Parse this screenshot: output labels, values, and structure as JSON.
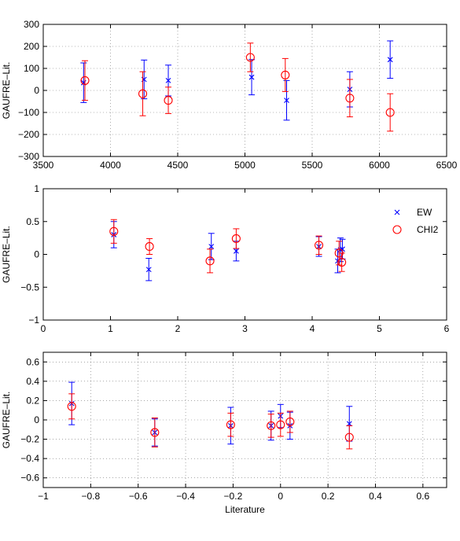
{
  "chart_data": [
    {
      "type": "scatter",
      "ylabel": "GAUFRE–Lit.",
      "xlabel": "",
      "xlim": [
        3500,
        6500
      ],
      "ylim": [
        -300,
        300
      ],
      "xticks": [
        "3500",
        "4000",
        "4500",
        "5000",
        "5500",
        "6000",
        "6500"
      ],
      "yticks": [
        "300",
        "200",
        "100",
        "0",
        "−100",
        "−200",
        "−300"
      ],
      "grid": true,
      "series": [
        {
          "name": "EW",
          "color": "#0000ff",
          "marker": "x",
          "points": [
            {
              "x": 3800,
              "y": 35,
              "err": 90
            },
            {
              "x": 4250,
              "y": 50,
              "err": 88
            },
            {
              "x": 4430,
              "y": 45,
              "err": 70
            },
            {
              "x": 5050,
              "y": 60,
              "err": 80
            },
            {
              "x": 5310,
              "y": -45,
              "err": 90
            },
            {
              "x": 5780,
              "y": 5,
              "err": 80
            },
            {
              "x": 6080,
              "y": 140,
              "err": 85
            }
          ]
        },
        {
          "name": "CHI2",
          "color": "#ff0000",
          "marker": "o",
          "points": [
            {
              "x": 3810,
              "y": 45,
              "err": 90
            },
            {
              "x": 4240,
              "y": -15,
              "err": 100
            },
            {
              "x": 4430,
              "y": -45,
              "err": 60
            },
            {
              "x": 5040,
              "y": 150,
              "err": 65
            },
            {
              "x": 5300,
              "y": 70,
              "err": 75
            },
            {
              "x": 5780,
              "y": -35,
              "err": 85
            },
            {
              "x": 6080,
              "y": -100,
              "err": 85
            }
          ]
        }
      ]
    },
    {
      "type": "scatter",
      "ylabel": "GAUFRE–Lit.",
      "xlabel": "",
      "xlim": [
        0,
        6
      ],
      "ylim": [
        -1,
        1
      ],
      "xticks": [
        "0",
        "1",
        "2",
        "3",
        "4",
        "5",
        "6"
      ],
      "yticks": [
        "1",
        "0.5",
        "0",
        "−0.5",
        "−1"
      ],
      "grid": false,
      "legend": {
        "position": "right",
        "entries": [
          "EW",
          "CHI2"
        ]
      },
      "series": [
        {
          "name": "EW",
          "color": "#0000ff",
          "marker": "x",
          "points": [
            {
              "x": 1.05,
              "y": 0.3,
              "err": 0.2
            },
            {
              "x": 1.57,
              "y": -0.23,
              "err": 0.17
            },
            {
              "x": 2.5,
              "y": 0.12,
              "err": 0.2
            },
            {
              "x": 2.87,
              "y": 0.05,
              "err": 0.15
            },
            {
              "x": 4.1,
              "y": 0.12,
              "err": 0.15
            },
            {
              "x": 4.38,
              "y": -0.1,
              "err": 0.18
            },
            {
              "x": 4.42,
              "y": 0.07,
              "err": 0.18
            },
            {
              "x": 4.45,
              "y": 0.08,
              "err": 0.15
            }
          ]
        },
        {
          "name": "CHI2",
          "color": "#ff0000",
          "marker": "o",
          "points": [
            {
              "x": 1.05,
              "y": 0.35,
              "err": 0.18
            },
            {
              "x": 1.58,
              "y": 0.12,
              "err": 0.12
            },
            {
              "x": 2.48,
              "y": -0.1,
              "err": 0.18
            },
            {
              "x": 2.87,
              "y": 0.24,
              "err": 0.15
            },
            {
              "x": 4.1,
              "y": 0.14,
              "err": 0.14
            },
            {
              "x": 4.4,
              "y": 0.02,
              "err": 0.18
            },
            {
              "x": 4.44,
              "y": -0.12,
              "err": 0.14
            }
          ]
        }
      ]
    },
    {
      "type": "scatter",
      "ylabel": "GAUFRE–Lit.",
      "xlabel": "Literature",
      "xlim": [
        -1,
        0.7
      ],
      "ylim": [
        -0.7,
        0.7
      ],
      "xticks": [
        "−1",
        "−0.8",
        "−0.6",
        "−0.4",
        "−0.2",
        "0",
        "0.2",
        "0.4",
        "0.6"
      ],
      "yticks": [
        "0.6",
        "0.4",
        "0.2",
        "0",
        "−0.2",
        "−0.4",
        "−0.6"
      ],
      "grid": true,
      "series": [
        {
          "name": "EW",
          "color": "#0000ff",
          "marker": "x",
          "points": [
            {
              "x": -0.88,
              "y": 0.17,
              "err": 0.22
            },
            {
              "x": -0.53,
              "y": -0.13,
              "err": 0.14
            },
            {
              "x": -0.21,
              "y": -0.06,
              "err": 0.19
            },
            {
              "x": -0.04,
              "y": -0.06,
              "err": 0.15
            },
            {
              "x": 0.0,
              "y": 0.04,
              "err": 0.12
            },
            {
              "x": 0.04,
              "y": -0.06,
              "err": 0.14
            },
            {
              "x": 0.29,
              "y": -0.04,
              "err": 0.18
            }
          ]
        },
        {
          "name": "CHI2",
          "color": "#ff0000",
          "marker": "o",
          "points": [
            {
              "x": -0.88,
              "y": 0.14,
              "err": 0.13
            },
            {
              "x": -0.53,
              "y": -0.13,
              "err": 0.15
            },
            {
              "x": -0.21,
              "y": -0.05,
              "err": 0.12
            },
            {
              "x": -0.04,
              "y": -0.06,
              "err": 0.12
            },
            {
              "x": 0.0,
              "y": -0.05,
              "err": 0.12
            },
            {
              "x": 0.04,
              "y": -0.02,
              "err": 0.11
            },
            {
              "x": 0.29,
              "y": -0.18,
              "err": 0.12
            }
          ]
        }
      ]
    }
  ]
}
